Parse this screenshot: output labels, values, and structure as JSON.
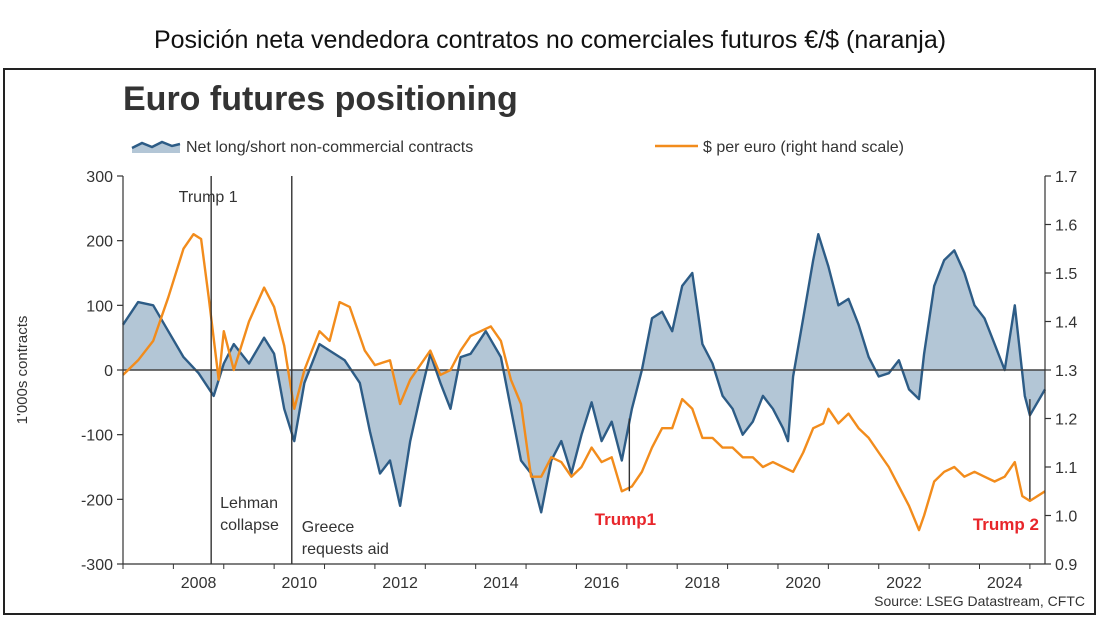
{
  "caption": "Posición neta vendedora contratos no comerciales futuros €/$ (naranja)",
  "colors": {
    "net_fill": "#b3c6d6",
    "net_line": "#2d5c86",
    "usd_line": "#f28c1c",
    "annotation_red": "#e8262b",
    "axis": "#333333"
  },
  "chart_data": {
    "type": "line",
    "title": "Euro futures positioning",
    "ylabel": "1'000s contracts",
    "xlabel": "",
    "source": "Source: LSEG Datastream, CFTC",
    "ylim": [
      -300,
      300
    ],
    "y2lim": [
      0.9,
      1.7
    ],
    "xlim": [
      2007.0,
      2025.3
    ],
    "x_ticks": [
      "2008",
      "2010",
      "2012",
      "2014",
      "2016",
      "2018",
      "2020",
      "2022",
      "2024"
    ],
    "y_ticks": [
      "300",
      "200",
      "100",
      "0",
      "-100",
      "-200",
      "-300"
    ],
    "y2_ticks": [
      "1.7",
      "1.6",
      "1.5",
      "1.4",
      "1.3",
      "1.2",
      "1.1",
      "1.0",
      "0.9"
    ],
    "legend": {
      "position": "top",
      "entries": [
        "Net long/short non-commercial contracts",
        "$ per euro (right hand scale)"
      ]
    },
    "series": [
      {
        "name": "Net long/short non-commercial contracts",
        "axis": "left",
        "style": "area",
        "points": [
          [
            2007.0,
            70
          ],
          [
            2007.3,
            105
          ],
          [
            2007.6,
            100
          ],
          [
            2007.9,
            60
          ],
          [
            2008.2,
            20
          ],
          [
            2008.5,
            -5
          ],
          [
            2008.8,
            -40
          ],
          [
            2009.0,
            10
          ],
          [
            2009.2,
            40
          ],
          [
            2009.5,
            10
          ],
          [
            2009.8,
            50
          ],
          [
            2010.0,
            25
          ],
          [
            2010.2,
            -60
          ],
          [
            2010.4,
            -110
          ],
          [
            2010.6,
            -20
          ],
          [
            2010.9,
            40
          ],
          [
            2011.1,
            30
          ],
          [
            2011.4,
            15
          ],
          [
            2011.7,
            -20
          ],
          [
            2011.9,
            -95
          ],
          [
            2012.1,
            -160
          ],
          [
            2012.3,
            -140
          ],
          [
            2012.5,
            -210
          ],
          [
            2012.7,
            -110
          ],
          [
            2012.9,
            -40
          ],
          [
            2013.1,
            25
          ],
          [
            2013.3,
            -20
          ],
          [
            2013.5,
            -60
          ],
          [
            2013.7,
            20
          ],
          [
            2013.9,
            25
          ],
          [
            2014.2,
            60
          ],
          [
            2014.5,
            20
          ],
          [
            2014.7,
            -60
          ],
          [
            2014.9,
            -140
          ],
          [
            2015.1,
            -160
          ],
          [
            2015.3,
            -220
          ],
          [
            2015.5,
            -140
          ],
          [
            2015.7,
            -110
          ],
          [
            2015.9,
            -160
          ],
          [
            2016.1,
            -100
          ],
          [
            2016.3,
            -50
          ],
          [
            2016.5,
            -110
          ],
          [
            2016.7,
            -80
          ],
          [
            2016.9,
            -140
          ],
          [
            2017.1,
            -60
          ],
          [
            2017.3,
            0
          ],
          [
            2017.5,
            80
          ],
          [
            2017.7,
            90
          ],
          [
            2017.9,
            60
          ],
          [
            2018.1,
            130
          ],
          [
            2018.3,
            150
          ],
          [
            2018.5,
            40
          ],
          [
            2018.7,
            10
          ],
          [
            2018.9,
            -40
          ],
          [
            2019.1,
            -60
          ],
          [
            2019.3,
            -100
          ],
          [
            2019.5,
            -80
          ],
          [
            2019.7,
            -40
          ],
          [
            2019.9,
            -60
          ],
          [
            2020.1,
            -90
          ],
          [
            2020.2,
            -110
          ],
          [
            2020.3,
            -10
          ],
          [
            2020.5,
            80
          ],
          [
            2020.7,
            170
          ],
          [
            2020.8,
            210
          ],
          [
            2021.0,
            160
          ],
          [
            2021.2,
            100
          ],
          [
            2021.4,
            110
          ],
          [
            2021.6,
            70
          ],
          [
            2021.8,
            20
          ],
          [
            2022.0,
            -10
          ],
          [
            2022.2,
            -5
          ],
          [
            2022.4,
            15
          ],
          [
            2022.6,
            -30
          ],
          [
            2022.8,
            -45
          ],
          [
            2022.9,
            25
          ],
          [
            2023.1,
            130
          ],
          [
            2023.3,
            170
          ],
          [
            2023.5,
            185
          ],
          [
            2023.7,
            150
          ],
          [
            2023.9,
            100
          ],
          [
            2024.1,
            80
          ],
          [
            2024.3,
            40
          ],
          [
            2024.5,
            0
          ],
          [
            2024.7,
            100
          ],
          [
            2024.9,
            -40
          ],
          [
            2025.0,
            -70
          ],
          [
            2025.3,
            -30
          ]
        ]
      },
      {
        "name": "$ per euro (right hand scale)",
        "axis": "right",
        "style": "line",
        "points": [
          [
            2007.0,
            1.29
          ],
          [
            2007.3,
            1.32
          ],
          [
            2007.6,
            1.36
          ],
          [
            2007.9,
            1.45
          ],
          [
            2008.2,
            1.55
          ],
          [
            2008.4,
            1.58
          ],
          [
            2008.55,
            1.57
          ],
          [
            2008.7,
            1.45
          ],
          [
            2008.9,
            1.28
          ],
          [
            2009.0,
            1.38
          ],
          [
            2009.2,
            1.3
          ],
          [
            2009.5,
            1.4
          ],
          [
            2009.8,
            1.47
          ],
          [
            2010.0,
            1.43
          ],
          [
            2010.2,
            1.35
          ],
          [
            2010.4,
            1.22
          ],
          [
            2010.6,
            1.3
          ],
          [
            2010.9,
            1.38
          ],
          [
            2011.1,
            1.36
          ],
          [
            2011.3,
            1.44
          ],
          [
            2011.5,
            1.43
          ],
          [
            2011.8,
            1.34
          ],
          [
            2012.0,
            1.31
          ],
          [
            2012.3,
            1.32
          ],
          [
            2012.5,
            1.23
          ],
          [
            2012.7,
            1.28
          ],
          [
            2012.9,
            1.31
          ],
          [
            2013.1,
            1.34
          ],
          [
            2013.3,
            1.29
          ],
          [
            2013.5,
            1.3
          ],
          [
            2013.7,
            1.34
          ],
          [
            2013.9,
            1.37
          ],
          [
            2014.1,
            1.38
          ],
          [
            2014.3,
            1.39
          ],
          [
            2014.5,
            1.36
          ],
          [
            2014.7,
            1.28
          ],
          [
            2014.9,
            1.23
          ],
          [
            2015.1,
            1.08
          ],
          [
            2015.3,
            1.08
          ],
          [
            2015.5,
            1.12
          ],
          [
            2015.7,
            1.11
          ],
          [
            2015.9,
            1.08
          ],
          [
            2016.1,
            1.1
          ],
          [
            2016.3,
            1.14
          ],
          [
            2016.5,
            1.11
          ],
          [
            2016.7,
            1.12
          ],
          [
            2016.9,
            1.05
          ],
          [
            2017.1,
            1.06
          ],
          [
            2017.3,
            1.09
          ],
          [
            2017.5,
            1.14
          ],
          [
            2017.7,
            1.18
          ],
          [
            2017.9,
            1.18
          ],
          [
            2018.1,
            1.24
          ],
          [
            2018.3,
            1.22
          ],
          [
            2018.5,
            1.16
          ],
          [
            2018.7,
            1.16
          ],
          [
            2018.9,
            1.14
          ],
          [
            2019.1,
            1.14
          ],
          [
            2019.3,
            1.12
          ],
          [
            2019.5,
            1.12
          ],
          [
            2019.7,
            1.1
          ],
          [
            2019.9,
            1.11
          ],
          [
            2020.1,
            1.1
          ],
          [
            2020.3,
            1.09
          ],
          [
            2020.5,
            1.13
          ],
          [
            2020.7,
            1.18
          ],
          [
            2020.9,
            1.19
          ],
          [
            2021.0,
            1.22
          ],
          [
            2021.2,
            1.19
          ],
          [
            2021.4,
            1.21
          ],
          [
            2021.6,
            1.18
          ],
          [
            2021.8,
            1.16
          ],
          [
            2022.0,
            1.13
          ],
          [
            2022.2,
            1.1
          ],
          [
            2022.4,
            1.06
          ],
          [
            2022.6,
            1.02
          ],
          [
            2022.8,
            0.97
          ],
          [
            2022.9,
            1.0
          ],
          [
            2023.1,
            1.07
          ],
          [
            2023.3,
            1.09
          ],
          [
            2023.5,
            1.1
          ],
          [
            2023.7,
            1.08
          ],
          [
            2023.9,
            1.09
          ],
          [
            2024.1,
            1.08
          ],
          [
            2024.3,
            1.07
          ],
          [
            2024.5,
            1.08
          ],
          [
            2024.7,
            1.11
          ],
          [
            2024.85,
            1.04
          ],
          [
            2025.0,
            1.03
          ],
          [
            2025.3,
            1.05
          ]
        ]
      }
    ],
    "annotations": [
      {
        "label": "Trump 1",
        "x": 2008.75,
        "style": "vline-black"
      },
      {
        "label": "Lehman collapse",
        "x": 2008.75,
        "style": "black"
      },
      {
        "label": "Greece requests aid",
        "x": 2010.35,
        "style": "black"
      },
      {
        "label": "Trump1",
        "x": 2017.05,
        "style": "red"
      },
      {
        "label": "Trump 2",
        "x": 2025.0,
        "style": "red"
      }
    ]
  }
}
